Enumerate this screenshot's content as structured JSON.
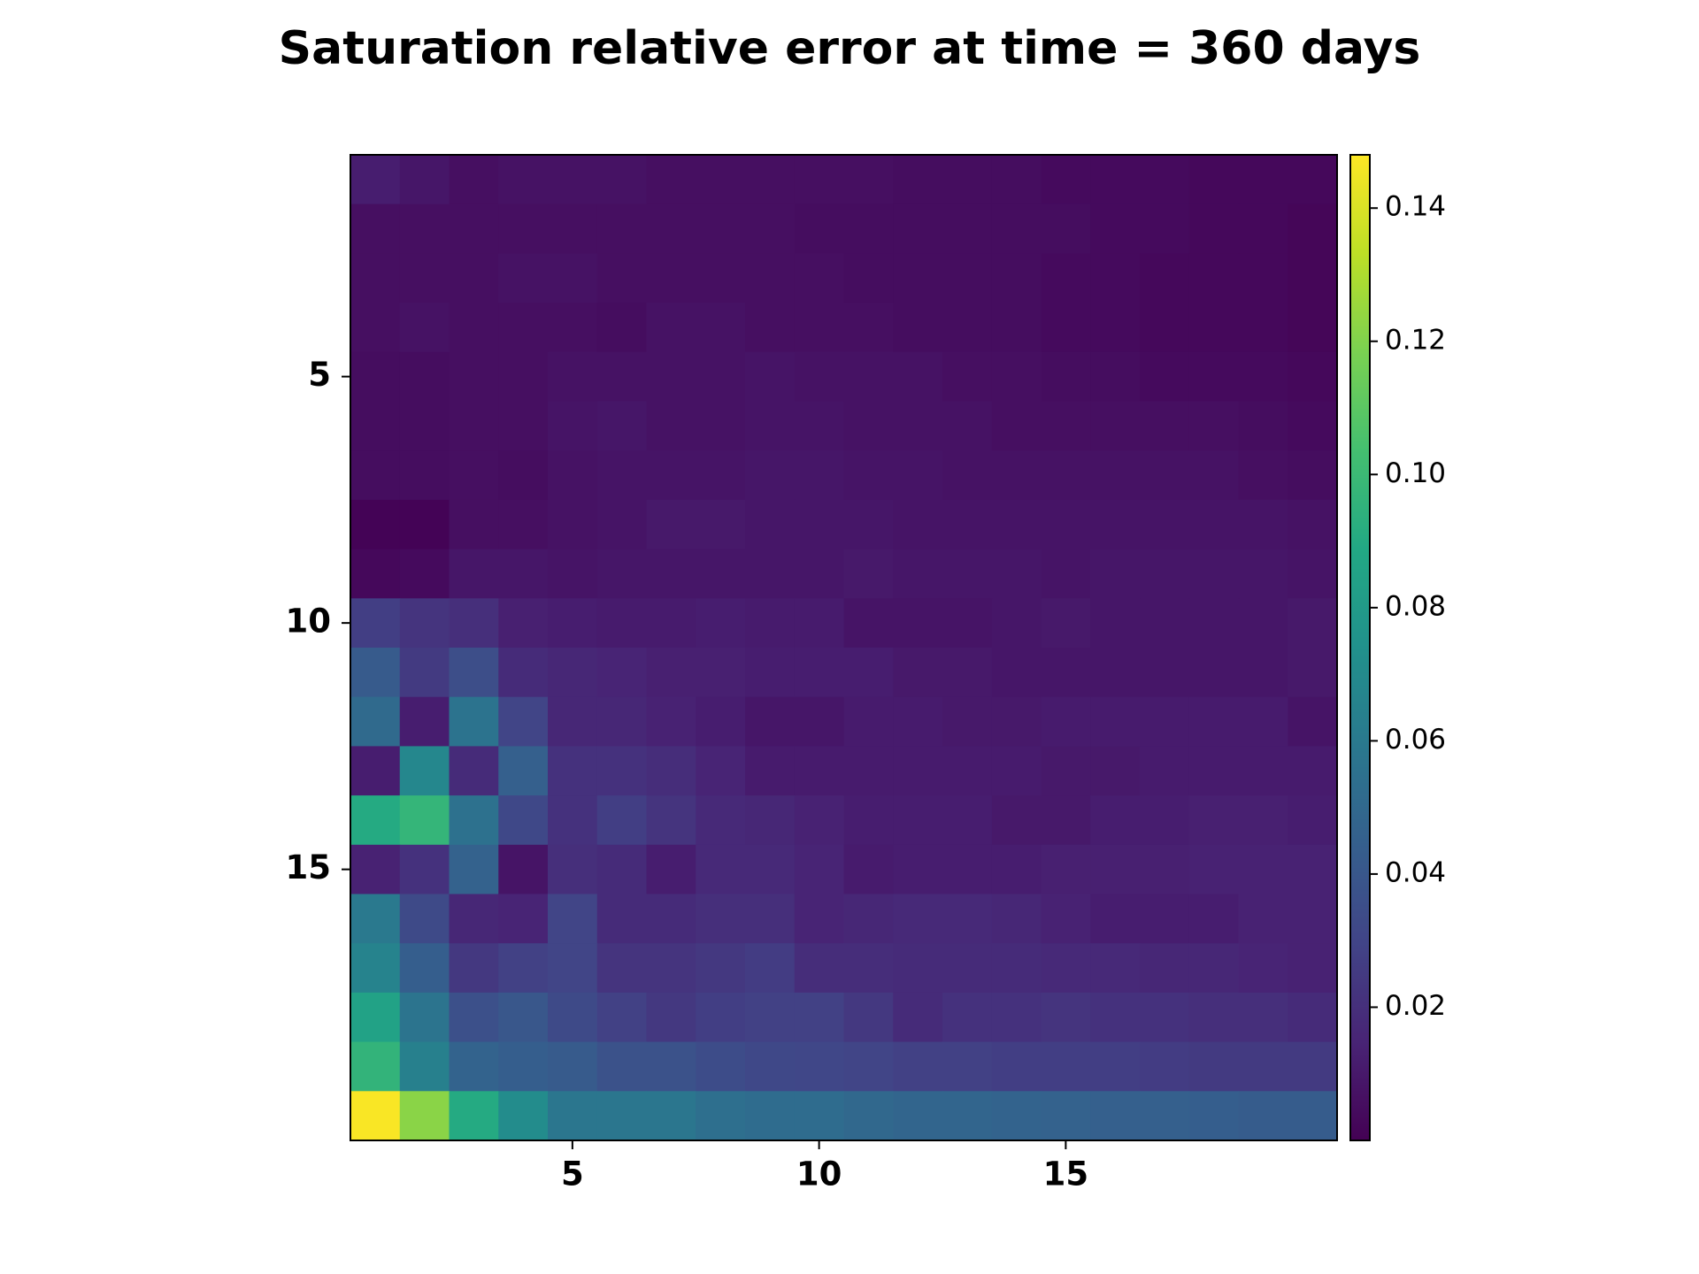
{
  "chart_data": {
    "type": "heatmap",
    "title": "Saturation relative error at time = 360 days",
    "colormap": "viridis",
    "xlim": [
      0.5,
      20.5
    ],
    "ylim": [
      0.5,
      20.5
    ],
    "y_inverted": true,
    "xticks": [
      5,
      10,
      15
    ],
    "yticks": [
      5,
      10,
      15
    ],
    "clim": [
      0,
      0.148
    ],
    "cticks": [
      0.02,
      0.04,
      0.06,
      0.08,
      {
        "value": 0.1,
        "label": "0.10"
      },
      0.12,
      0.14
    ],
    "z": [
      [
        0.012,
        0.009,
        0.006,
        0.007,
        0.007,
        0.007,
        0.006,
        0.006,
        0.006,
        0.006,
        0.006,
        0.005,
        0.005,
        0.005,
        0.004,
        0.004,
        0.004,
        0.003,
        0.003,
        0.003
      ],
      [
        0.006,
        0.006,
        0.006,
        0.006,
        0.006,
        0.006,
        0.006,
        0.006,
        0.006,
        0.005,
        0.005,
        0.005,
        0.005,
        0.005,
        0.005,
        0.004,
        0.004,
        0.003,
        0.003,
        0.002
      ],
      [
        0.006,
        0.006,
        0.006,
        0.007,
        0.007,
        0.006,
        0.006,
        0.006,
        0.006,
        0.006,
        0.005,
        0.005,
        0.005,
        0.005,
        0.004,
        0.004,
        0.003,
        0.003,
        0.003,
        0.002
      ],
      [
        0.006,
        0.007,
        0.006,
        0.006,
        0.006,
        0.005,
        0.007,
        0.007,
        0.006,
        0.006,
        0.006,
        0.005,
        0.005,
        0.005,
        0.004,
        0.004,
        0.003,
        0.003,
        0.003,
        0.002
      ],
      [
        0.005,
        0.005,
        0.006,
        0.006,
        0.007,
        0.007,
        0.007,
        0.007,
        0.008,
        0.007,
        0.007,
        0.007,
        0.006,
        0.006,
        0.005,
        0.005,
        0.004,
        0.004,
        0.004,
        0.003
      ],
      [
        0.005,
        0.005,
        0.006,
        0.006,
        0.008,
        0.009,
        0.007,
        0.007,
        0.008,
        0.008,
        0.007,
        0.007,
        0.007,
        0.006,
        0.006,
        0.006,
        0.006,
        0.006,
        0.005,
        0.004
      ],
      [
        0.005,
        0.005,
        0.006,
        0.005,
        0.007,
        0.008,
        0.008,
        0.008,
        0.009,
        0.009,
        0.008,
        0.008,
        0.007,
        0.007,
        0.007,
        0.007,
        0.007,
        0.007,
        0.006,
        0.005
      ],
      [
        0.001,
        0.001,
        0.006,
        0.006,
        0.007,
        0.008,
        0.01,
        0.01,
        0.009,
        0.009,
        0.009,
        0.008,
        0.008,
        0.008,
        0.008,
        0.008,
        0.008,
        0.008,
        0.008,
        0.007
      ],
      [
        0.003,
        0.004,
        0.009,
        0.009,
        0.008,
        0.009,
        0.009,
        0.009,
        0.009,
        0.009,
        0.01,
        0.009,
        0.009,
        0.009,
        0.008,
        0.009,
        0.009,
        0.009,
        0.009,
        0.008
      ],
      [
        0.027,
        0.022,
        0.02,
        0.013,
        0.012,
        0.011,
        0.011,
        0.012,
        0.011,
        0.011,
        0.008,
        0.008,
        0.008,
        0.009,
        0.01,
        0.009,
        0.009,
        0.009,
        0.009,
        0.01
      ],
      [
        0.042,
        0.025,
        0.035,
        0.018,
        0.016,
        0.015,
        0.013,
        0.013,
        0.012,
        0.012,
        0.012,
        0.01,
        0.01,
        0.009,
        0.009,
        0.009,
        0.009,
        0.009,
        0.009,
        0.01
      ],
      [
        0.051,
        0.012,
        0.056,
        0.03,
        0.016,
        0.016,
        0.014,
        0.012,
        0.009,
        0.009,
        0.011,
        0.011,
        0.01,
        0.01,
        0.011,
        0.011,
        0.011,
        0.011,
        0.011,
        0.008
      ],
      [
        0.012,
        0.068,
        0.018,
        0.045,
        0.021,
        0.021,
        0.019,
        0.015,
        0.011,
        0.011,
        0.011,
        0.011,
        0.011,
        0.011,
        0.01,
        0.01,
        0.011,
        0.011,
        0.011,
        0.011
      ],
      [
        0.09,
        0.097,
        0.055,
        0.032,
        0.021,
        0.027,
        0.022,
        0.017,
        0.016,
        0.014,
        0.012,
        0.012,
        0.012,
        0.01,
        0.01,
        0.012,
        0.012,
        0.013,
        0.013,
        0.012
      ],
      [
        0.014,
        0.021,
        0.046,
        0.008,
        0.02,
        0.018,
        0.012,
        0.017,
        0.017,
        0.015,
        0.011,
        0.012,
        0.012,
        0.012,
        0.013,
        0.013,
        0.013,
        0.014,
        0.014,
        0.014
      ],
      [
        0.06,
        0.033,
        0.016,
        0.015,
        0.03,
        0.018,
        0.018,
        0.02,
        0.02,
        0.015,
        0.016,
        0.017,
        0.017,
        0.016,
        0.014,
        0.012,
        0.012,
        0.012,
        0.014,
        0.014
      ],
      [
        0.066,
        0.044,
        0.024,
        0.028,
        0.03,
        0.022,
        0.022,
        0.024,
        0.026,
        0.019,
        0.019,
        0.018,
        0.018,
        0.018,
        0.017,
        0.017,
        0.016,
        0.016,
        0.015,
        0.014
      ],
      [
        0.085,
        0.057,
        0.036,
        0.04,
        0.033,
        0.028,
        0.024,
        0.027,
        0.028,
        0.028,
        0.024,
        0.018,
        0.021,
        0.021,
        0.022,
        0.021,
        0.021,
        0.02,
        0.02,
        0.018
      ],
      [
        0.096,
        0.064,
        0.047,
        0.044,
        0.042,
        0.037,
        0.037,
        0.034,
        0.032,
        0.031,
        0.03,
        0.028,
        0.028,
        0.027,
        0.027,
        0.027,
        0.026,
        0.025,
        0.025,
        0.025
      ],
      [
        0.147,
        0.122,
        0.09,
        0.071,
        0.058,
        0.058,
        0.058,
        0.054,
        0.052,
        0.052,
        0.05,
        0.048,
        0.048,
        0.047,
        0.046,
        0.045,
        0.045,
        0.044,
        0.043,
        0.043
      ]
    ]
  }
}
